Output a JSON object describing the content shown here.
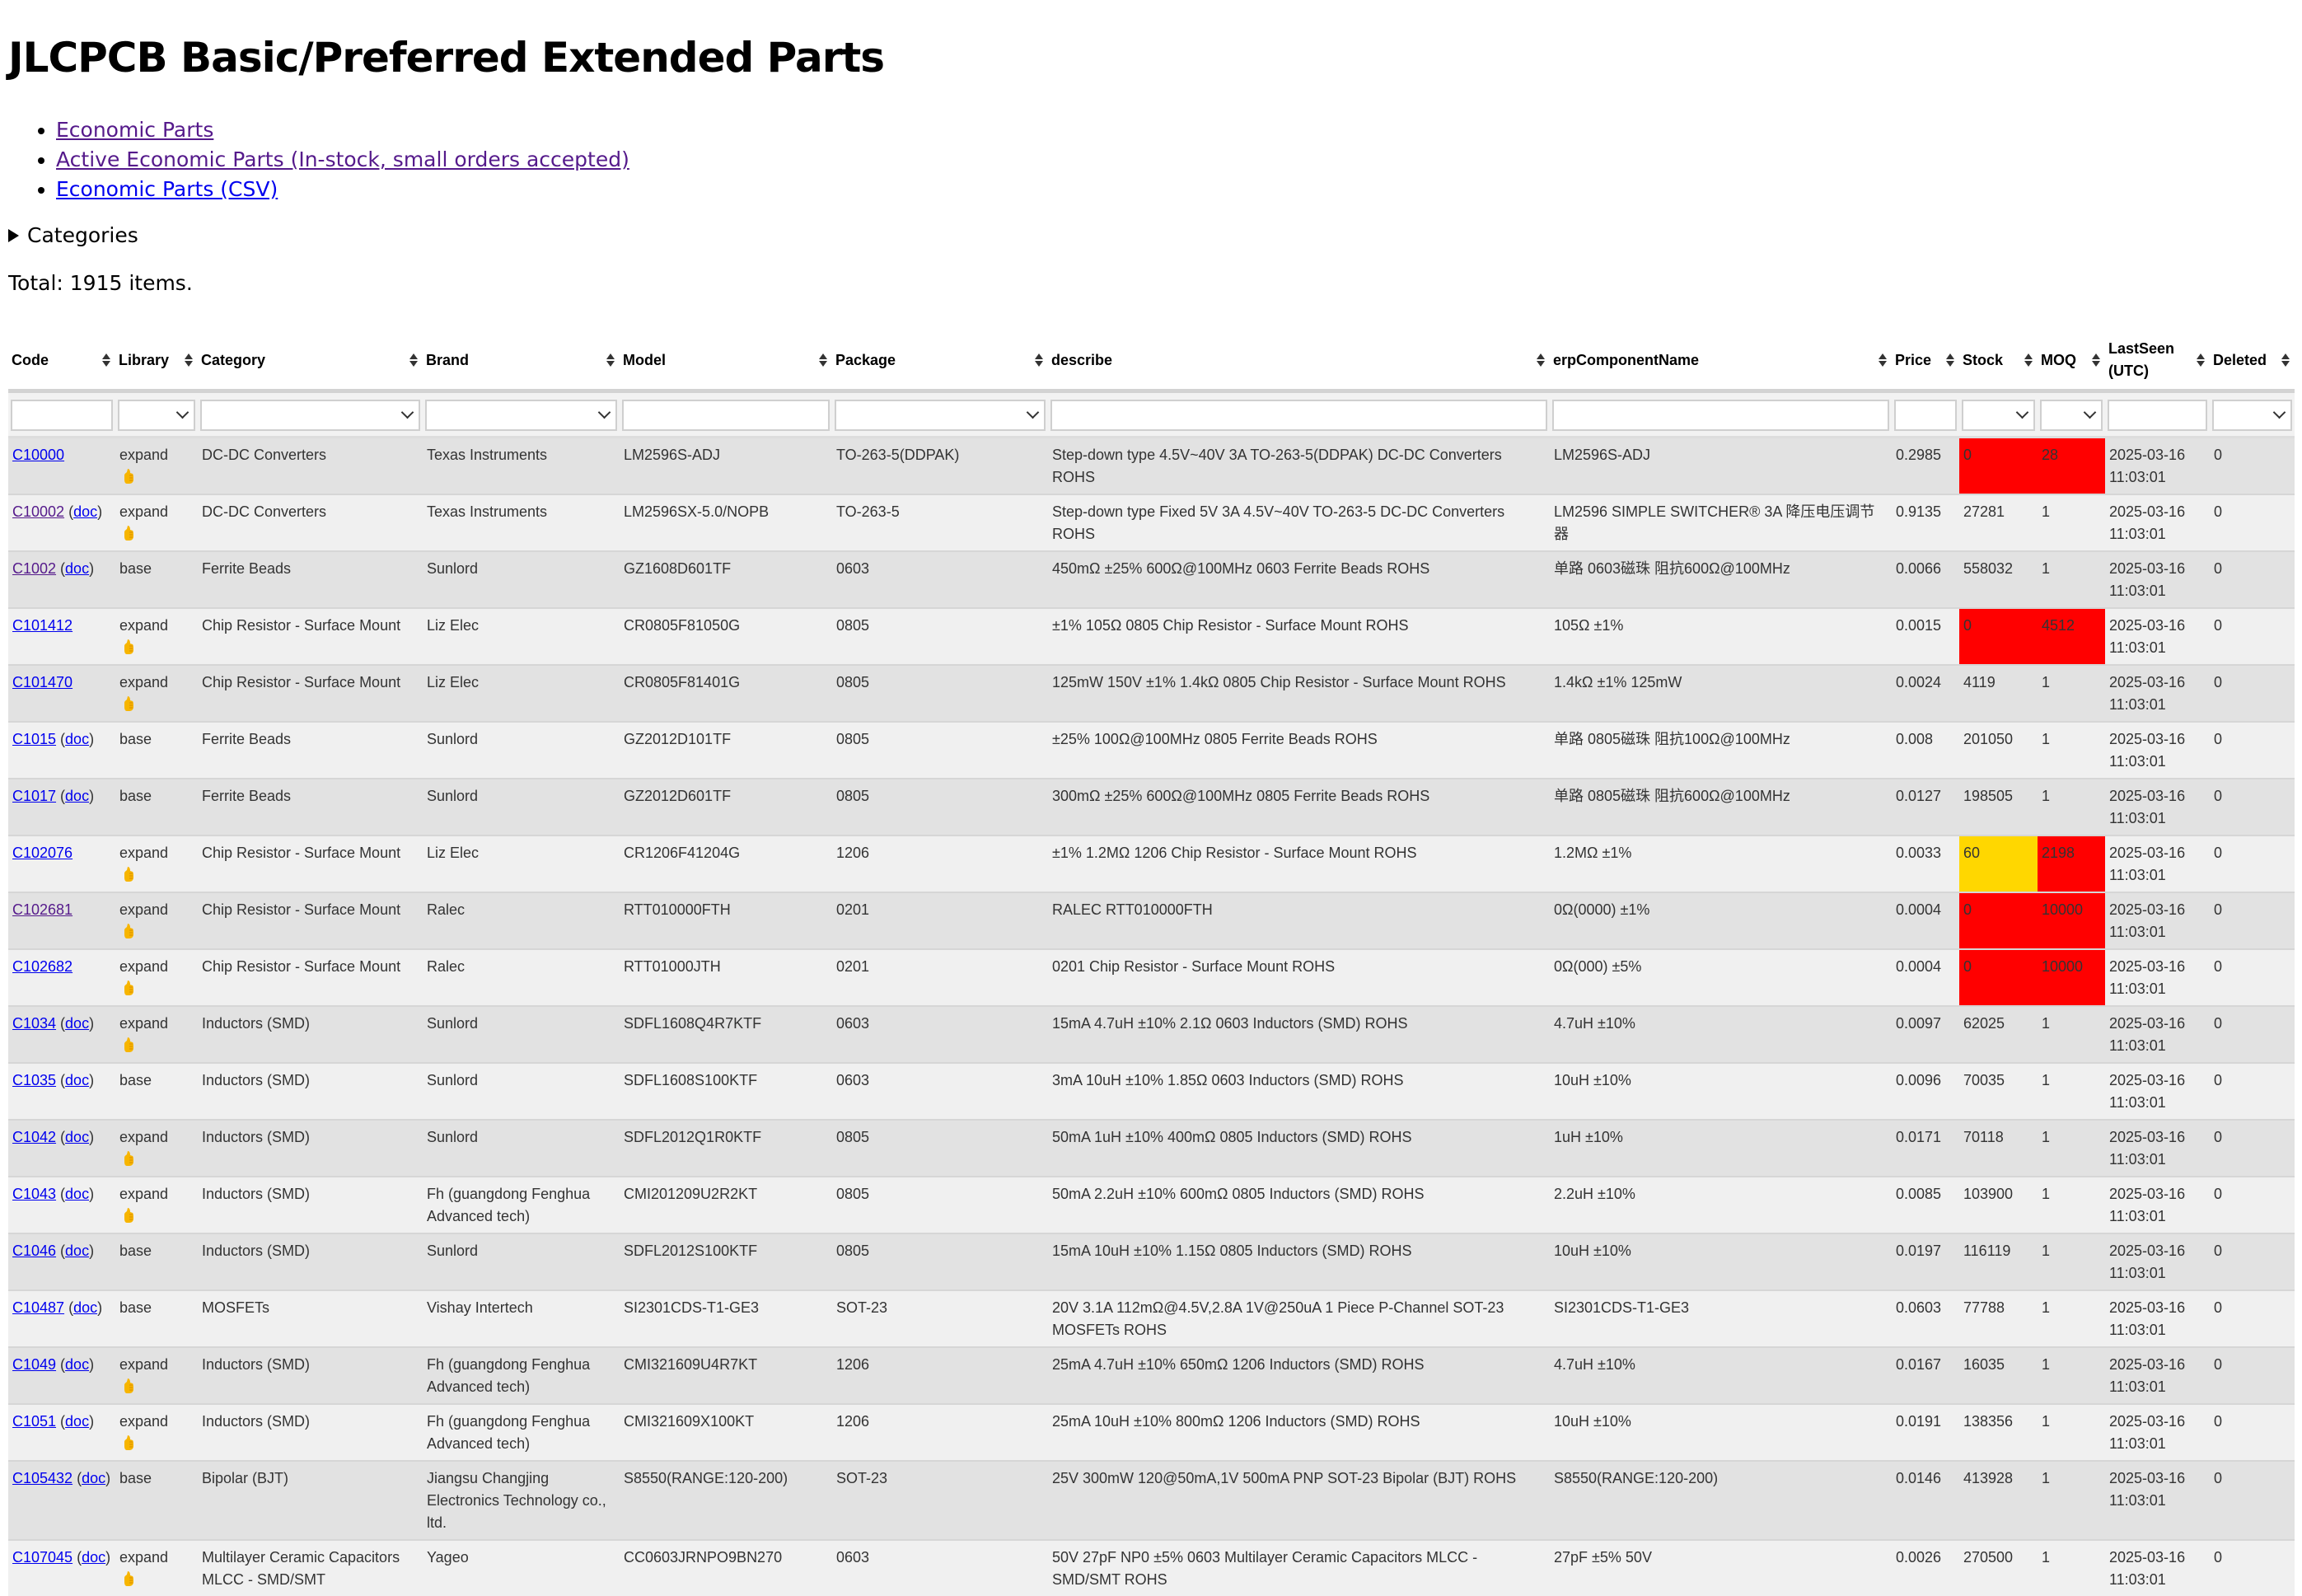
{
  "page": {
    "title": "JLCPCB Basic/Preferred Extended Parts",
    "links": [
      {
        "label": "Economic Parts",
        "visited": true
      },
      {
        "label": "Active Economic Parts (In-stock, small orders accepted)",
        "visited": true
      },
      {
        "label": "Economic Parts (CSV)",
        "visited": false
      }
    ],
    "categories_label": "Categories",
    "total": "Total: 1915 items."
  },
  "colors": {
    "red": "#ff0000",
    "yellow": "#ffd700",
    "link": "#0000ee",
    "visited_link": "#551a8b"
  },
  "table": {
    "columns": [
      {
        "label": "Code",
        "filter": "input"
      },
      {
        "label": "Library",
        "filter": "select"
      },
      {
        "label": "Category",
        "filter": "select"
      },
      {
        "label": "Brand",
        "filter": "select"
      },
      {
        "label": "Model",
        "filter": "input"
      },
      {
        "label": "Package",
        "filter": "select"
      },
      {
        "label": "describe",
        "filter": "input"
      },
      {
        "label": "erpComponentName",
        "filter": "input"
      },
      {
        "label": "Price",
        "filter": "input"
      },
      {
        "label": "Stock",
        "filter": "select"
      },
      {
        "label": "MOQ",
        "filter": "select"
      },
      {
        "label": "LastSeen (UTC)",
        "filter": "input"
      },
      {
        "label": "Deleted",
        "filter": "select"
      }
    ],
    "doc_label": "doc",
    "thumb_icon": "thumbs-up-icon",
    "rows": [
      {
        "code": "C10000",
        "visited": false,
        "doc": false,
        "library": "expand",
        "thumb": true,
        "category": "DC-DC Converters",
        "brand": "Texas Instruments",
        "model": "LM2596S-ADJ",
        "package": "TO-263-5(DDPAK)",
        "describe": "Step-down type 4.5V~40V 3A TO-263-5(DDPAK) DC-DC Converters ROHS",
        "erp": "LM2596S-ADJ",
        "price": "0.2985",
        "stock": "0",
        "stock_color": "red",
        "moq": "28",
        "moq_color": "red",
        "lastseen": "2025-03-16 11:03:01",
        "deleted": "0"
      },
      {
        "code": "C10002",
        "visited": true,
        "doc": true,
        "library": "expand",
        "thumb": true,
        "category": "DC-DC Converters",
        "brand": "Texas Instruments",
        "model": "LM2596SX-5.0/NOPB",
        "package": "TO-263-5",
        "describe": "Step-down type Fixed 5V 3A 4.5V~40V TO-263-5 DC-DC Converters ROHS",
        "erp": "LM2596 SIMPLE SWITCHER® 3A 降压电压调节器",
        "price": "0.9135",
        "stock": "27281",
        "moq": "1",
        "lastseen": "2025-03-16 11:03:01",
        "deleted": "0"
      },
      {
        "code": "C1002",
        "visited": true,
        "doc": true,
        "library": "base",
        "thumb": false,
        "category": "Ferrite Beads",
        "brand": "Sunlord",
        "model": "GZ1608D601TF",
        "package": "0603",
        "describe": "450mΩ ±25% 600Ω@100MHz 0603 Ferrite Beads ROHS",
        "erp": "单路 0603磁珠 阻抗600Ω@100MHz",
        "price": "0.0066",
        "stock": "558032",
        "moq": "1",
        "lastseen": "2025-03-16 11:03:01",
        "deleted": "0"
      },
      {
        "code": "C101412",
        "visited": false,
        "doc": false,
        "library": "expand",
        "thumb": true,
        "category": "Chip Resistor - Surface Mount",
        "brand": "Liz Elec",
        "model": "CR0805F81050G",
        "package": "0805",
        "describe": "±1% 105Ω 0805 Chip Resistor - Surface Mount ROHS",
        "erp": "105Ω ±1%",
        "price": "0.0015",
        "stock": "0",
        "stock_color": "red",
        "moq": "4512",
        "moq_color": "red",
        "lastseen": "2025-03-16 11:03:01",
        "deleted": "0"
      },
      {
        "code": "C101470",
        "visited": false,
        "doc": false,
        "library": "expand",
        "thumb": true,
        "category": "Chip Resistor - Surface Mount",
        "brand": "Liz Elec",
        "model": "CR0805F81401G",
        "package": "0805",
        "describe": "125mW 150V ±1% 1.4kΩ 0805 Chip Resistor - Surface Mount ROHS",
        "erp": "1.4kΩ ±1% 125mW",
        "price": "0.0024",
        "stock": "4119",
        "moq": "1",
        "lastseen": "2025-03-16 11:03:01",
        "deleted": "0"
      },
      {
        "code": "C1015",
        "visited": false,
        "doc": true,
        "library": "base",
        "thumb": false,
        "category": "Ferrite Beads",
        "brand": "Sunlord",
        "model": "GZ2012D101TF",
        "package": "0805",
        "describe": "±25% 100Ω@100MHz 0805 Ferrite Beads ROHS",
        "erp": "单路 0805磁珠 阻抗100Ω@100MHz",
        "price": "0.008",
        "stock": "201050",
        "moq": "1",
        "lastseen": "2025-03-16 11:03:01",
        "deleted": "0"
      },
      {
        "code": "C1017",
        "visited": false,
        "doc": true,
        "library": "base",
        "thumb": false,
        "category": "Ferrite Beads",
        "brand": "Sunlord",
        "model": "GZ2012D601TF",
        "package": "0805",
        "describe": "300mΩ ±25% 600Ω@100MHz 0805 Ferrite Beads ROHS",
        "erp": "单路 0805磁珠 阻抗600Ω@100MHz",
        "price": "0.0127",
        "stock": "198505",
        "moq": "1",
        "lastseen": "2025-03-16 11:03:01",
        "deleted": "0"
      },
      {
        "code": "C102076",
        "visited": false,
        "doc": false,
        "library": "expand",
        "thumb": true,
        "category": "Chip Resistor - Surface Mount",
        "brand": "Liz Elec",
        "model": "CR1206F41204G",
        "package": "1206",
        "describe": "±1% 1.2MΩ 1206 Chip Resistor - Surface Mount ROHS",
        "erp": "1.2MΩ ±1%",
        "price": "0.0033",
        "stock": "60",
        "stock_color": "yellow",
        "moq": "2198",
        "moq_color": "red",
        "lastseen": "2025-03-16 11:03:01",
        "deleted": "0"
      },
      {
        "code": "C102681",
        "visited": true,
        "doc": false,
        "library": "expand",
        "thumb": true,
        "category": "Chip Resistor - Surface Mount",
        "brand": "Ralec",
        "model": "RTT010000FTH",
        "package": "0201",
        "describe": "RALEC RTT010000FTH",
        "erp": "0Ω(0000) ±1%",
        "price": "0.0004",
        "stock": "0",
        "stock_color": "red",
        "moq": "10000",
        "moq_color": "red",
        "lastseen": "2025-03-16 11:03:01",
        "deleted": "0"
      },
      {
        "code": "C102682",
        "visited": false,
        "doc": false,
        "library": "expand",
        "thumb": true,
        "category": "Chip Resistor - Surface Mount",
        "brand": "Ralec",
        "model": "RTT01000JTH",
        "package": "0201",
        "describe": "0201 Chip Resistor - Surface Mount ROHS",
        "erp": "0Ω(000) ±5%",
        "price": "0.0004",
        "stock": "0",
        "stock_color": "red",
        "moq": "10000",
        "moq_color": "red",
        "lastseen": "2025-03-16 11:03:01",
        "deleted": "0"
      },
      {
        "code": "C1034",
        "visited": false,
        "doc": true,
        "library": "expand",
        "thumb": true,
        "category": "Inductors (SMD)",
        "brand": "Sunlord",
        "model": "SDFL1608Q4R7KTF",
        "package": "0603",
        "describe": "15mA 4.7uH ±10% 2.1Ω 0603 Inductors (SMD) ROHS",
        "erp": "4.7uH ±10%",
        "price": "0.0097",
        "stock": "62025",
        "moq": "1",
        "lastseen": "2025-03-16 11:03:01",
        "deleted": "0"
      },
      {
        "code": "C1035",
        "visited": false,
        "doc": true,
        "library": "base",
        "thumb": false,
        "category": "Inductors (SMD)",
        "brand": "Sunlord",
        "model": "SDFL1608S100KTF",
        "package": "0603",
        "describe": "3mA 10uH ±10% 1.85Ω 0603 Inductors (SMD) ROHS",
        "erp": "10uH ±10%",
        "price": "0.0096",
        "stock": "70035",
        "moq": "1",
        "lastseen": "2025-03-16 11:03:01",
        "deleted": "0"
      },
      {
        "code": "C1042",
        "visited": false,
        "doc": true,
        "library": "expand",
        "thumb": true,
        "category": "Inductors (SMD)",
        "brand": "Sunlord",
        "model": "SDFL2012Q1R0KTF",
        "package": "0805",
        "describe": "50mA 1uH ±10% 400mΩ 0805 Inductors (SMD) ROHS",
        "erp": "1uH ±10%",
        "price": "0.0171",
        "stock": "70118",
        "moq": "1",
        "lastseen": "2025-03-16 11:03:01",
        "deleted": "0"
      },
      {
        "code": "C1043",
        "visited": false,
        "doc": true,
        "library": "expand",
        "thumb": true,
        "category": "Inductors (SMD)",
        "brand": "Fh (guangdong Fenghua Advanced tech)",
        "model": "CMI201209U2R2KT",
        "package": "0805",
        "describe": "50mA 2.2uH ±10% 600mΩ 0805 Inductors (SMD) ROHS",
        "erp": "2.2uH ±10%",
        "price": "0.0085",
        "stock": "103900",
        "moq": "1",
        "lastseen": "2025-03-16 11:03:01",
        "deleted": "0"
      },
      {
        "code": "C1046",
        "visited": false,
        "doc": true,
        "library": "base",
        "thumb": false,
        "category": "Inductors (SMD)",
        "brand": "Sunlord",
        "model": "SDFL2012S100KTF",
        "package": "0805",
        "describe": "15mA 10uH ±10% 1.15Ω 0805 Inductors (SMD) ROHS",
        "erp": "10uH ±10%",
        "price": "0.0197",
        "stock": "116119",
        "moq": "1",
        "lastseen": "2025-03-16 11:03:01",
        "deleted": "0"
      },
      {
        "code": "C10487",
        "visited": false,
        "doc": true,
        "library": "base",
        "thumb": false,
        "category": "MOSFETs",
        "brand": "Vishay Intertech",
        "model": "SI2301CDS-T1-GE3",
        "package": "SOT-23",
        "describe": "20V 3.1A 112mΩ@4.5V,2.8A 1V@250uA 1 Piece P-Channel SOT-23 MOSFETs ROHS",
        "erp": "SI2301CDS-T1-GE3",
        "price": "0.0603",
        "stock": "77788",
        "moq": "1",
        "lastseen": "2025-03-16 11:03:01",
        "deleted": "0"
      },
      {
        "code": "C1049",
        "visited": false,
        "doc": true,
        "library": "expand",
        "thumb": true,
        "category": "Inductors (SMD)",
        "brand": "Fh (guangdong Fenghua Advanced tech)",
        "model": "CMI321609U4R7KT",
        "package": "1206",
        "describe": "25mA 4.7uH ±10% 650mΩ 1206 Inductors (SMD) ROHS",
        "erp": "4.7uH ±10%",
        "price": "0.0167",
        "stock": "16035",
        "moq": "1",
        "lastseen": "2025-03-16 11:03:01",
        "deleted": "0"
      },
      {
        "code": "C1051",
        "visited": false,
        "doc": true,
        "library": "expand",
        "thumb": true,
        "category": "Inductors (SMD)",
        "brand": "Fh (guangdong Fenghua Advanced tech)",
        "model": "CMI321609X100KT",
        "package": "1206",
        "describe": "25mA 10uH ±10% 800mΩ 1206 Inductors (SMD) ROHS",
        "erp": "10uH ±10%",
        "price": "0.0191",
        "stock": "138356",
        "moq": "1",
        "lastseen": "2025-03-16 11:03:01",
        "deleted": "0"
      },
      {
        "code": "C105432",
        "visited": false,
        "doc": true,
        "library": "base",
        "thumb": false,
        "category": "Bipolar (BJT)",
        "brand": "Jiangsu Changjing Electronics Technology co., ltd.",
        "model": "S8550(RANGE:120-200)",
        "package": "SOT-23",
        "describe": "25V 300mW 120@50mA,1V 500mA PNP SOT-23 Bipolar (BJT) ROHS",
        "erp": "S8550(RANGE:120-200)",
        "price": "0.0146",
        "stock": "413928",
        "moq": "1",
        "lastseen": "2025-03-16 11:03:01",
        "deleted": "0"
      },
      {
        "code": "C107045",
        "visited": false,
        "doc": true,
        "library": "expand",
        "thumb": true,
        "category": "Multilayer Ceramic Capacitors MLCC - SMD/SMT",
        "brand": "Yageo",
        "model": "CC0603JRNPO9BN270",
        "package": "0603",
        "describe": "50V 27pF NP0 ±5% 0603 Multilayer Ceramic Capacitors MLCC - SMD/SMT ROHS",
        "erp": "27pF ±5% 50V",
        "price": "0.0026",
        "stock": "270500",
        "moq": "1",
        "lastseen": "2025-03-16 11:03:01",
        "deleted": "0"
      }
    ]
  }
}
